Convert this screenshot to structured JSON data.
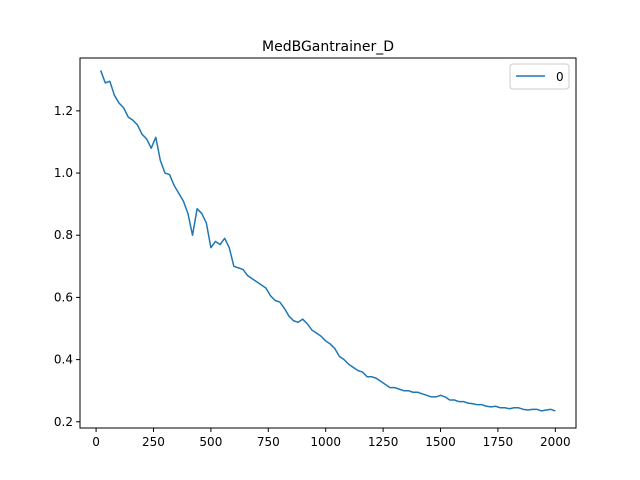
{
  "chart_data": {
    "type": "line",
    "title": "MedBGantrainer_D",
    "xlabel": "",
    "ylabel": "",
    "xlim": [
      -70,
      2090
    ],
    "ylim": [
      0.18,
      1.37
    ],
    "xticks": [
      0,
      250,
      500,
      750,
      1000,
      1250,
      1500,
      1750,
      2000
    ],
    "yticks": [
      0.2,
      0.4,
      0.6,
      0.8,
      1.0,
      1.2
    ],
    "xtick_labels": [
      "0",
      "250",
      "500",
      "750",
      "1000",
      "1250",
      "1500",
      "1750",
      "2000"
    ],
    "ytick_labels": [
      "0.2",
      "0.4",
      "0.6",
      "0.8",
      "1.0",
      "1.2"
    ],
    "grid": false,
    "legend_position": "top-right",
    "series": [
      {
        "name": "0",
        "color": "#1f77b4",
        "x": [
          20,
          40,
          60,
          80,
          100,
          120,
          140,
          160,
          180,
          200,
          220,
          240,
          260,
          280,
          300,
          320,
          340,
          360,
          380,
          400,
          420,
          440,
          460,
          480,
          500,
          520,
          540,
          560,
          580,
          600,
          620,
          640,
          660,
          680,
          700,
          720,
          740,
          760,
          780,
          800,
          820,
          840,
          860,
          880,
          900,
          920,
          940,
          960,
          980,
          1000,
          1020,
          1040,
          1060,
          1080,
          1100,
          1120,
          1140,
          1160,
          1180,
          1200,
          1220,
          1240,
          1260,
          1280,
          1300,
          1320,
          1340,
          1360,
          1380,
          1400,
          1420,
          1440,
          1460,
          1480,
          1500,
          1520,
          1540,
          1560,
          1580,
          1600,
          1620,
          1640,
          1660,
          1680,
          1700,
          1720,
          1740,
          1760,
          1780,
          1800,
          1820,
          1840,
          1860,
          1880,
          1900,
          1920,
          1940,
          1960,
          1980,
          2000
        ],
        "values": [
          1.33,
          1.29,
          1.295,
          1.25,
          1.225,
          1.21,
          1.18,
          1.17,
          1.155,
          1.125,
          1.11,
          1.08,
          1.115,
          1.04,
          1.0,
          0.995,
          0.96,
          0.935,
          0.91,
          0.87,
          0.8,
          0.885,
          0.87,
          0.84,
          0.76,
          0.78,
          0.77,
          0.79,
          0.76,
          0.7,
          0.695,
          0.69,
          0.67,
          0.66,
          0.65,
          0.64,
          0.63,
          0.605,
          0.59,
          0.585,
          0.565,
          0.54,
          0.525,
          0.52,
          0.53,
          0.515,
          0.495,
          0.485,
          0.475,
          0.46,
          0.45,
          0.435,
          0.41,
          0.4,
          0.385,
          0.375,
          0.365,
          0.36,
          0.345,
          0.345,
          0.34,
          0.33,
          0.32,
          0.31,
          0.31,
          0.305,
          0.3,
          0.3,
          0.295,
          0.295,
          0.29,
          0.285,
          0.28,
          0.28,
          0.285,
          0.28,
          0.27,
          0.27,
          0.265,
          0.265,
          0.26,
          0.258,
          0.255,
          0.255,
          0.25,
          0.248,
          0.25,
          0.245,
          0.245,
          0.242,
          0.245,
          0.245,
          0.24,
          0.238,
          0.24,
          0.24,
          0.235,
          0.238,
          0.24,
          0.235
        ]
      }
    ]
  }
}
